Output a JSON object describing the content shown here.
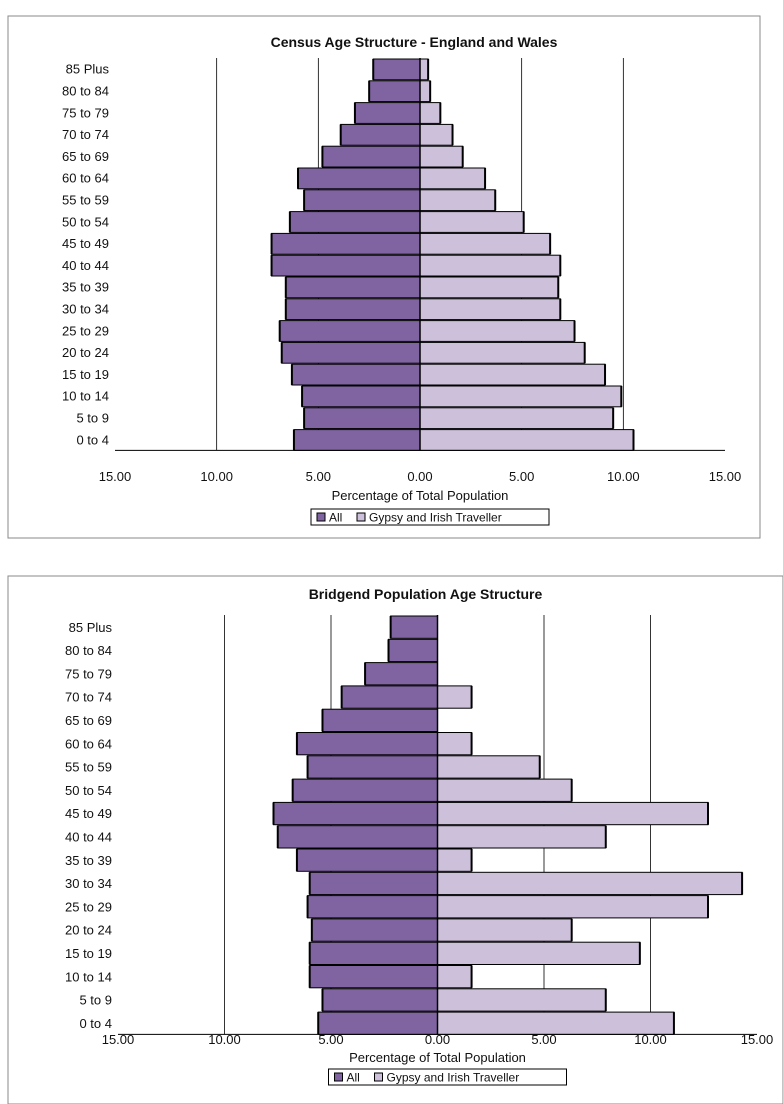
{
  "chart_data": [
    {
      "type": "bar",
      "orientation": "horizontal",
      "layout": "population-pyramid",
      "title": "Census Age Structure - England and Wales",
      "xlabel": "Percentage of Total Population",
      "xlim": [
        -15,
        15
      ],
      "x_ticks": [
        "15.00",
        "10.00",
        "5.00",
        "0.00",
        "5.00",
        "10.00",
        "15.00"
      ],
      "legend_position": "bottom",
      "categories": [
        "85 Plus",
        "80 to 84",
        "75 to 79",
        "70 to 74",
        "65 to 69",
        "60 to 64",
        "55 to 59",
        "50 to 54",
        "45 to 49",
        "40 to 44",
        "35 to 39",
        "30 to 34",
        "25 to 29",
        "20 to 24",
        "15 to 19",
        "10 to 14",
        "5 to 9",
        "0 to 4"
      ],
      "series": [
        {
          "name": "All",
          "color": "#8064a2",
          "side": "left",
          "values": [
            2.3,
            2.5,
            3.2,
            3.9,
            4.8,
            6.0,
            5.7,
            6.4,
            7.3,
            7.3,
            6.6,
            6.6,
            6.9,
            6.8,
            6.3,
            5.8,
            5.7,
            6.2
          ]
        },
        {
          "name": "Gypsy and Irish Traveller",
          "color": "#ccc0da",
          "side": "right",
          "values": [
            0.4,
            0.5,
            1.0,
            1.6,
            2.1,
            3.2,
            3.7,
            5.1,
            6.4,
            6.9,
            6.8,
            6.9,
            7.6,
            8.1,
            9.1,
            9.9,
            9.5,
            10.5
          ]
        }
      ]
    },
    {
      "type": "bar",
      "orientation": "horizontal",
      "layout": "population-pyramid",
      "title": "Bridgend Population Age Structure",
      "xlabel": "Percentage of Total Population",
      "xlim": [
        -15,
        15
      ],
      "x_ticks": [
        "15.00",
        "10.00",
        "5.00",
        "0.00",
        "5.00",
        "10.00",
        "15.00"
      ],
      "legend_position": "bottom",
      "categories": [
        "85 Plus",
        "80 to 84",
        "75 to 79",
        "70 to 74",
        "65 to 69",
        "60 to 64",
        "55 to 59",
        "50 to 54",
        "45 to 49",
        "40 to 44",
        "35 to 39",
        "30 to 34",
        "25 to 29",
        "20 to 24",
        "15 to 19",
        "10 to 14",
        "5 to 9",
        "0 to 4"
      ],
      "series": [
        {
          "name": "All",
          "color": "#8064a2",
          "side": "left",
          "values": [
            2.2,
            2.3,
            3.4,
            4.5,
            5.4,
            6.6,
            6.1,
            6.8,
            7.7,
            7.5,
            6.6,
            6.0,
            6.1,
            5.9,
            6.0,
            6.0,
            5.4,
            5.6
          ]
        },
        {
          "name": "Gypsy and Irish Traveller",
          "color": "#ccc0da",
          "side": "right",
          "values": [
            0,
            0,
            0,
            1.6,
            0,
            1.6,
            4.8,
            6.3,
            12.7,
            7.9,
            1.6,
            14.3,
            12.7,
            6.3,
            9.5,
            1.6,
            7.9,
            11.1
          ]
        }
      ]
    }
  ]
}
